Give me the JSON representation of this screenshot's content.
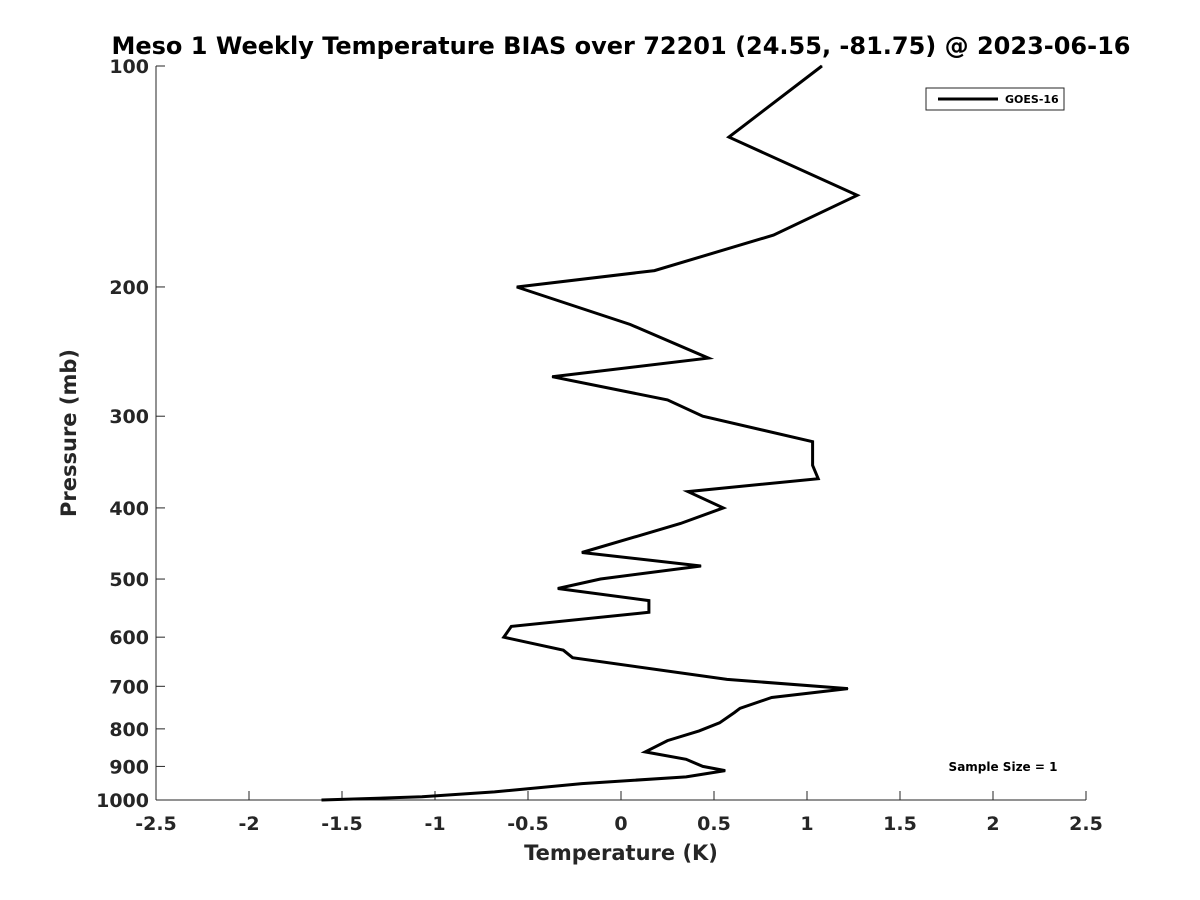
{
  "chart_data": {
    "type": "line",
    "title": "Meso 1 Weekly Temperature BIAS over 72201 (24.55, -81.75) @ 2023-06-16",
    "xlabel": "Temperature (K)",
    "ylabel": "Pressure (mb)",
    "xlim": [
      -2.5,
      2.5
    ],
    "ylim": [
      100,
      1000
    ],
    "y_scale": "log",
    "y_reversed": true,
    "x_ticks": [
      "-2.5",
      "-2",
      "-1.5",
      "-1",
      "-0.5",
      "0",
      "0.5",
      "1",
      "1.5",
      "2",
      "2.5"
    ],
    "y_ticks": [
      "100",
      "200",
      "300",
      "400",
      "500",
      "600",
      "700",
      "800",
      "900",
      "1000"
    ],
    "grid": false,
    "legend_position": "top-right",
    "series": [
      {
        "name": "GOES-16",
        "color": "#000000",
        "points": [
          {
            "x": 1.08,
            "y": 100
          },
          {
            "x": 0.58,
            "y": 125
          },
          {
            "x": 1.27,
            "y": 150
          },
          {
            "x": 0.82,
            "y": 170
          },
          {
            "x": 0.18,
            "y": 190
          },
          {
            "x": -0.56,
            "y": 200
          },
          {
            "x": 0.05,
            "y": 225
          },
          {
            "x": 0.47,
            "y": 250
          },
          {
            "x": -0.37,
            "y": 265
          },
          {
            "x": 0.25,
            "y": 285
          },
          {
            "x": 0.44,
            "y": 300
          },
          {
            "x": 1.03,
            "y": 325
          },
          {
            "x": 1.03,
            "y": 350
          },
          {
            "x": 1.06,
            "y": 365
          },
          {
            "x": 0.36,
            "y": 380
          },
          {
            "x": 0.55,
            "y": 400
          },
          {
            "x": 0.32,
            "y": 420
          },
          {
            "x": -0.21,
            "y": 460
          },
          {
            "x": 0.43,
            "y": 480
          },
          {
            "x": -0.11,
            "y": 500
          },
          {
            "x": -0.34,
            "y": 515
          },
          {
            "x": 0.15,
            "y": 535
          },
          {
            "x": 0.15,
            "y": 555
          },
          {
            "x": -0.59,
            "y": 580
          },
          {
            "x": -0.63,
            "y": 600
          },
          {
            "x": -0.31,
            "y": 625
          },
          {
            "x": -0.26,
            "y": 640
          },
          {
            "x": 0.57,
            "y": 685
          },
          {
            "x": 1.22,
            "y": 705
          },
          {
            "x": 0.81,
            "y": 725
          },
          {
            "x": 0.64,
            "y": 750
          },
          {
            "x": 0.61,
            "y": 760
          },
          {
            "x": 0.53,
            "y": 785
          },
          {
            "x": 0.42,
            "y": 805
          },
          {
            "x": 0.25,
            "y": 830
          },
          {
            "x": 0.13,
            "y": 860
          },
          {
            "x": 0.35,
            "y": 880
          },
          {
            "x": 0.44,
            "y": 900
          },
          {
            "x": 0.56,
            "y": 912
          },
          {
            "x": 0.35,
            "y": 930
          },
          {
            "x": -0.21,
            "y": 950
          },
          {
            "x": -0.68,
            "y": 975
          },
          {
            "x": -1.07,
            "y": 990
          },
          {
            "x": -1.61,
            "y": 1000
          }
        ]
      }
    ],
    "legend_entries": [
      "GOES-16"
    ],
    "annotations": [
      "Sample Size = 1"
    ]
  }
}
